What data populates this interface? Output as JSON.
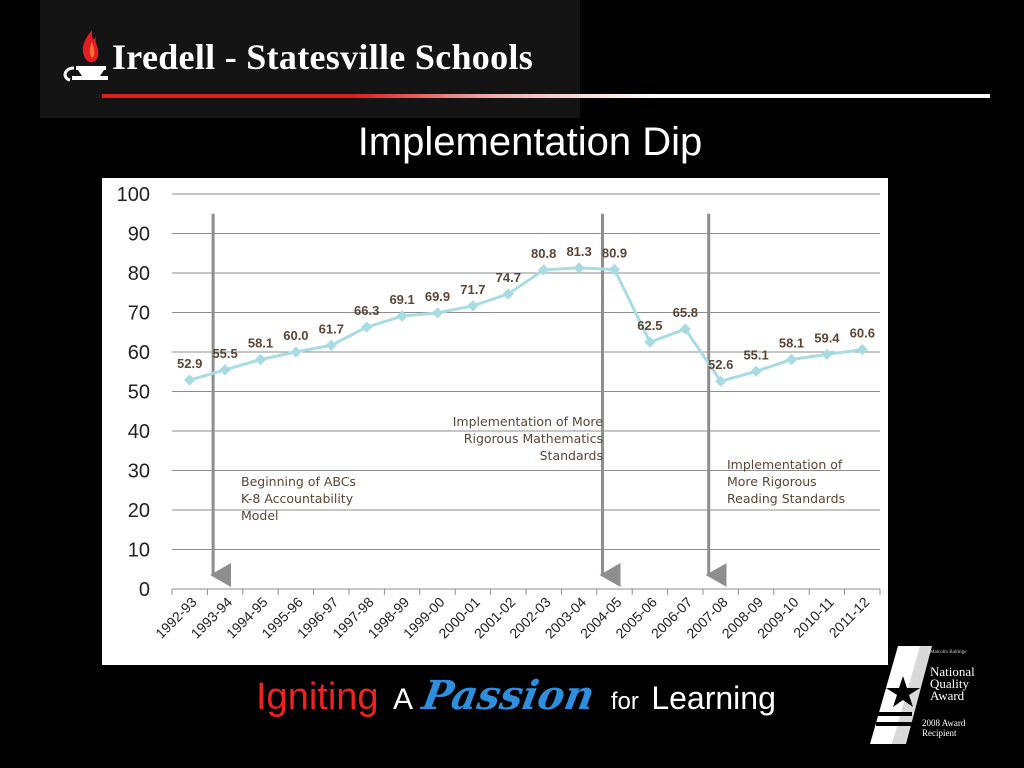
{
  "header": {
    "org_name": "Iredell - Statesville Schools",
    "logo_icon": "flame-lamp-icon",
    "accent_red": "#e01e1e"
  },
  "slide": {
    "title": "Implementation Dip"
  },
  "chart_data": {
    "type": "line",
    "title": "",
    "xlabel": "",
    "ylabel": "",
    "ylim": [
      0,
      100
    ],
    "yticks": [
      "0",
      "10",
      "20",
      "30",
      "40",
      "50",
      "60",
      "70",
      "80",
      "90",
      "100"
    ],
    "grid": true,
    "line_color": "#a8dce2",
    "categories": [
      "1992-93",
      "1993-94",
      "1994-95",
      "1995-96",
      "1996-97",
      "1997-98",
      "1998-99",
      "1999-00",
      "2000-01",
      "2001-02",
      "2002-03",
      "2003-04",
      "2004-05",
      "2005-06",
      "2006-07",
      "2007-08",
      "2008-09",
      "2009-10",
      "2010-11",
      "2011-12"
    ],
    "values": [
      52.9,
      55.5,
      58.1,
      60.0,
      61.7,
      66.3,
      69.1,
      69.9,
      71.7,
      74.7,
      80.8,
      81.3,
      80.9,
      62.5,
      65.8,
      52.6,
      55.1,
      58.1,
      59.4,
      60.6
    ],
    "data_labels": [
      "52.9",
      "55.5",
      "58.1",
      "60.0",
      "61.7",
      "66.3",
      "69.1",
      "69.9",
      "71.7",
      "74.7",
      "80.8",
      "81.3",
      "80.9",
      "62.5",
      "65.8",
      "52.6",
      "55.1",
      "58.1",
      "59.4",
      "60.6"
    ],
    "markers": [
      {
        "category_index": 1,
        "value": 95
      },
      {
        "category_index": 12,
        "value": 95
      },
      {
        "category_index": 15,
        "value": 95
      }
    ],
    "annotations": [
      {
        "text": "Beginning of ABCs K-8 Accountability Model"
      },
      {
        "text": "Implementation of More Rigorous Mathematics Standards"
      },
      {
        "text": "Implementation of More Rigorous Reading Standards"
      }
    ]
  },
  "annotations_text": {
    "abcs": [
      "Beginning of ABCs",
      "K-8 Accountability",
      "Model"
    ],
    "math": [
      "Implementation of More",
      "Rigorous Mathematics",
      "Standards"
    ],
    "reading": [
      "Implementation of",
      "More Rigorous",
      "Reading Standards"
    ]
  },
  "tagline": {
    "igniting": "Igniting",
    "a": "A",
    "passion": "Passion",
    "for": "for",
    "learning": "Learning",
    "igniting_color": "#ee2222",
    "passion_color": "#2d8fde"
  },
  "award": {
    "emblem_icon": "baldrige-star-emblem-icon",
    "small_text": "Malcolm Baldrige",
    "name_lines": [
      "National",
      "Quality",
      "Award"
    ],
    "recipient_lines": [
      "2008 Award",
      "Recipient"
    ]
  }
}
